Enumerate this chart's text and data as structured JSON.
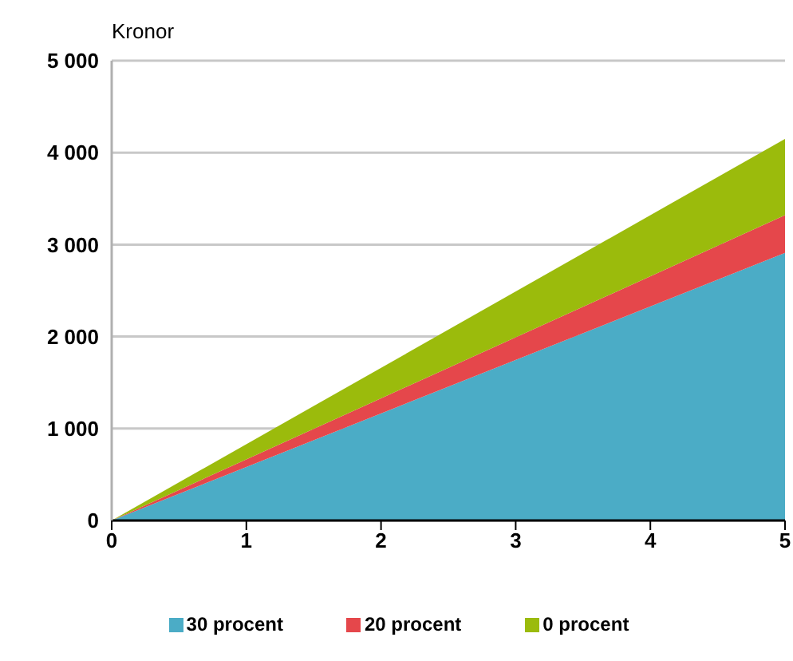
{
  "chart_data": {
    "type": "area",
    "stacked": true,
    "ylabel": "Kronor",
    "x": [
      0,
      5
    ],
    "xlim": [
      0,
      5
    ],
    "xticks": [
      0,
      1,
      2,
      3,
      4,
      5
    ],
    "ylim": [
      0,
      5000
    ],
    "yticks": [
      {
        "value": 0,
        "label": "0"
      },
      {
        "value": 1000,
        "label": "1 000"
      },
      {
        "value": 2000,
        "label": "2 000"
      },
      {
        "value": 3000,
        "label": "3 000"
      },
      {
        "value": 4000,
        "label": "4 000"
      },
      {
        "value": 5000,
        "label": "5 000"
      }
    ],
    "grid": "y",
    "legend": "bottom",
    "series": [
      {
        "name": "30 procent",
        "color": "#4bacc6",
        "values": [
          0,
          2910
        ]
      },
      {
        "name": "20 procent",
        "color": "#e5474b",
        "values": [
          0,
          410
        ]
      },
      {
        "name": "0 procent",
        "color": "#9bbb0c",
        "values": [
          0,
          830
        ]
      }
    ]
  }
}
